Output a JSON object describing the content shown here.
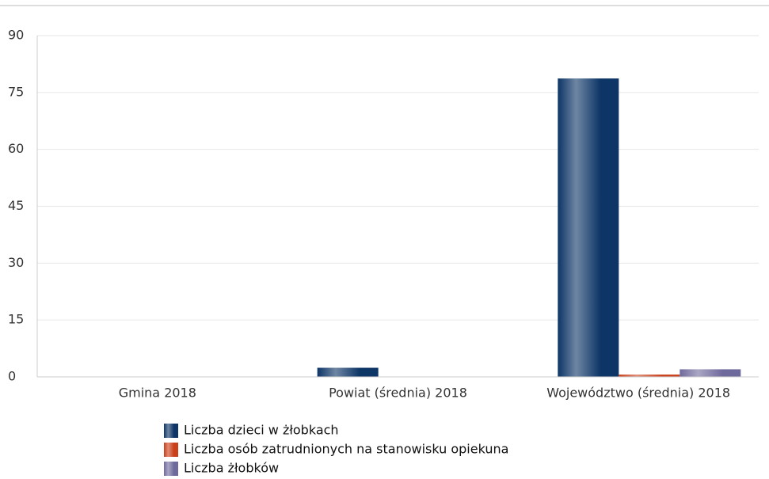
{
  "chart_data": {
    "type": "bar",
    "categories": [
      "Gmina 2018",
      "Powiat (średnia) 2018",
      "Województwo (średnia) 2018"
    ],
    "series": [
      {
        "name": "Liczba dzieci w żłobkach",
        "color": "#0d3566",
        "values": [
          0,
          2.4,
          78.7
        ]
      },
      {
        "name": "Liczba osób zatrudnionych na stanowisku opiekuna",
        "color": "#c9401a",
        "values": [
          0,
          0,
          0.6
        ]
      },
      {
        "name": "Liczba żłobków",
        "color": "#6f6a9c",
        "values": [
          0,
          0,
          2
        ]
      }
    ],
    "ylim": [
      0,
      90
    ],
    "yticks": [
      0,
      15,
      30,
      45,
      60,
      75,
      90
    ],
    "grid": true
  }
}
